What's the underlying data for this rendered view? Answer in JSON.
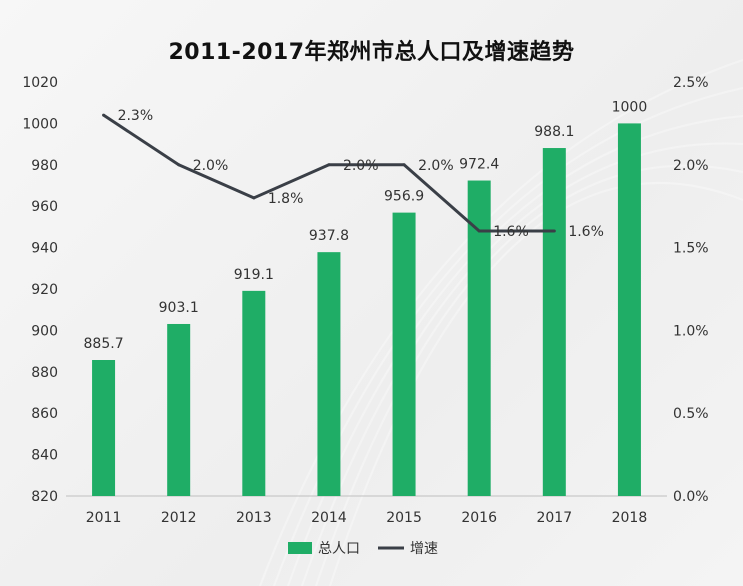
{
  "chart_data": {
    "type": "bar",
    "title": "2011-2017年郑州市总人口及增速趋势",
    "categories": [
      "2011",
      "2012",
      "2013",
      "2014",
      "2015",
      "2016",
      "2017",
      "2018"
    ],
    "series": [
      {
        "name": "总人口",
        "type": "bar",
        "axis": "left",
        "color": "#1fad66",
        "values": [
          885.7,
          903.1,
          919.1,
          937.8,
          956.9,
          972.4,
          988.1,
          1000
        ],
        "labels": [
          "885.7",
          "903.1",
          "919.1",
          "937.8",
          "956.9",
          "972.4",
          "988.1",
          "1000"
        ]
      },
      {
        "name": "增速",
        "type": "line",
        "axis": "right",
        "color": "#3a3f47",
        "values": [
          2.3,
          2.0,
          1.8,
          2.0,
          2.0,
          1.6,
          1.6,
          null
        ],
        "labels": [
          "2.3%",
          "2.0%",
          "1.8%",
          "2.0%",
          "2.0%",
          "1.6%",
          "1.6%",
          ""
        ]
      }
    ],
    "y_left": {
      "min": 820,
      "max": 1020,
      "ticks": [
        "820",
        "840",
        "860",
        "880",
        "900",
        "920",
        "940",
        "960",
        "980",
        "1000",
        "1020"
      ]
    },
    "y_right": {
      "min": 0,
      "max": 2.5,
      "unit": "%",
      "ticks": [
        "0.0%",
        "0.5%",
        "1.0%",
        "1.5%",
        "2.0%",
        "2.5%"
      ]
    },
    "grid": false,
    "legend": "bottom"
  }
}
